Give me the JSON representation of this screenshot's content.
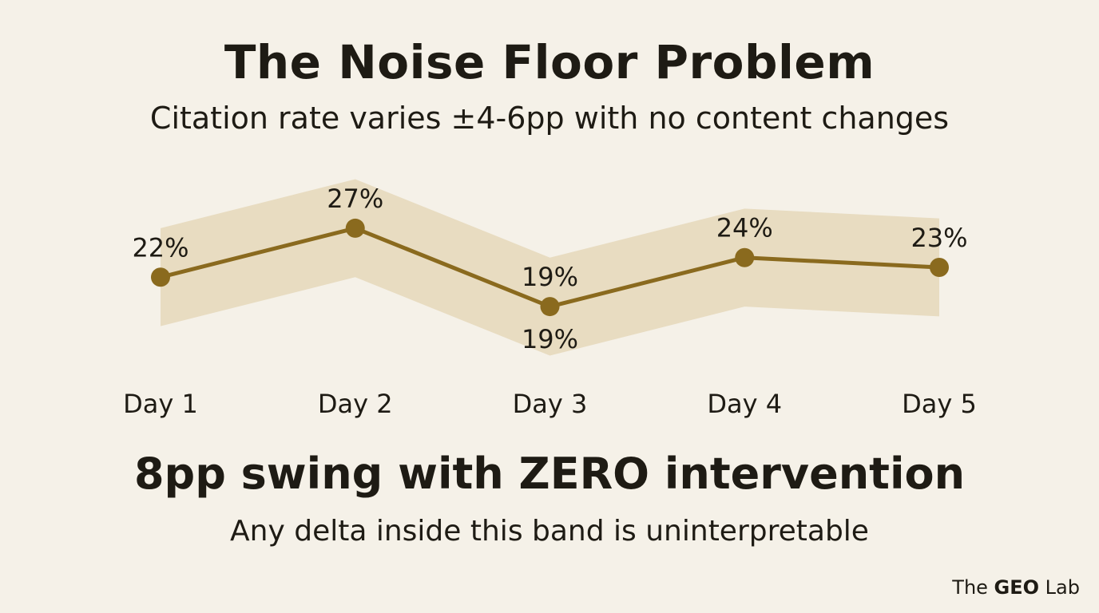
{
  "title": "The Noise Floor Problem",
  "subtitle": "Citation rate varies ±4-6pp with no content changes",
  "chart_data": {
    "type": "line",
    "categories": [
      "Day 1",
      "Day 2",
      "Day 3",
      "Day 4",
      "Day 5"
    ],
    "series": [
      {
        "values": [
          22,
          27,
          19,
          24,
          23
        ]
      }
    ],
    "value_labels": [
      "22%",
      "27%",
      "19%",
      "24%",
      "23%"
    ],
    "band_label_duplicate": "19%",
    "band": {
      "lower": [
        17,
        22,
        14,
        19,
        18
      ],
      "upper": [
        27,
        32,
        24,
        29,
        28
      ]
    },
    "ylim": [
      12,
      34
    ],
    "grid": false,
    "legend": "none",
    "colors": {
      "line": "#8a6a1e",
      "point": "#8a6a1e",
      "band": "#e8dcc1"
    }
  },
  "headline": "8pp swing with ZERO intervention",
  "subline": "Any delta inside this band is uninterpretable",
  "brand": {
    "prefix": "The ",
    "bold": "GEO",
    "suffix": " Lab"
  }
}
